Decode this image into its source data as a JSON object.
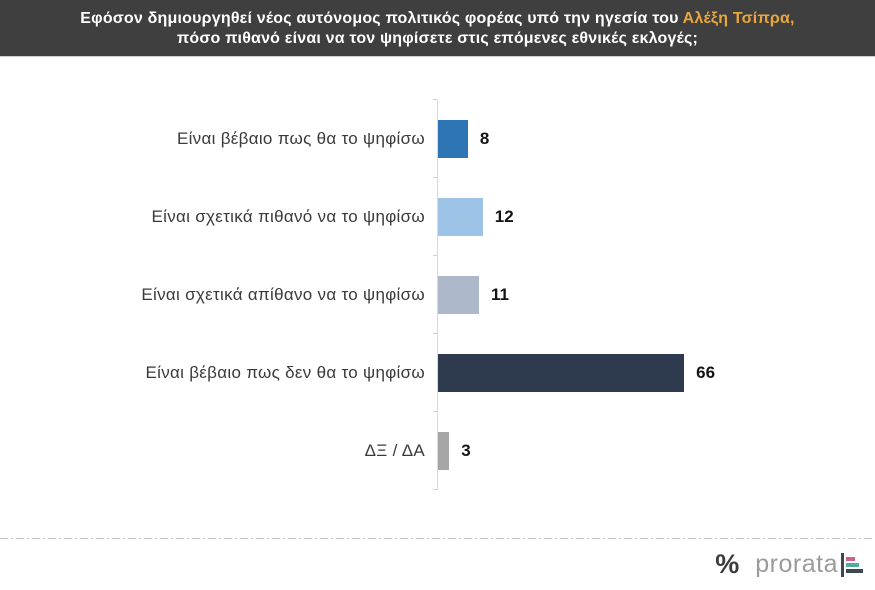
{
  "header": {
    "line1_prefix": "Εφόσον δημιουργηθεί νέος αυτόνομος πολιτικός φορέας υπό την ηγεσία του ",
    "line1_highlight": "Αλέξη Τσίπρα,",
    "line2": "πόσο πιθανό είναι να τον ψηφίσετε στις επόμενες εθνικές εκλογές;",
    "bg_color": "#3f3f3f",
    "text_color": "#ffffff",
    "highlight_color": "#e9a63f"
  },
  "chart_data": {
    "type": "bar",
    "orientation": "horizontal",
    "title": "Εφόσον δημιουργηθεί νέος αυτόνομος πολιτικός φορέας υπό την ηγεσία του Αλέξη Τσίπρα, πόσο πιθανό είναι να τον ψηφίσετε στις επόμενες εθνικές εκλογές;",
    "categories": [
      "Είναι βέβαιο πως θα το ψηφίσω",
      "Είναι σχετικά πιθανό να το ψηφίσω",
      "Είναι σχετικά απίθανο να το ψηφίσω",
      "Είναι βέβαιο πως δεν θα το ψηφίσω",
      "ΔΞ / ΔΑ"
    ],
    "values": [
      8,
      12,
      11,
      66,
      3
    ],
    "value_labels": [
      "8",
      "12",
      "11",
      "66",
      "3"
    ],
    "bar_colors": [
      "#2e75b6",
      "#9dc3e6",
      "#adb9ca",
      "#2e3b4e",
      "#a6a6a6"
    ],
    "xlabel": "",
    "ylabel": "",
    "xlim": [
      0,
      100
    ],
    "grid": false,
    "legend": false,
    "value_label_position": "right-of-bar",
    "axis_color": "#d9d9d9"
  },
  "footer": {
    "percent_symbol": "%",
    "brand": "prorata",
    "icon_colors": {
      "vertical_bar": "#3e4854",
      "hbar_top": "#c7638f",
      "hbar_middle": "#52ab9b",
      "hbar_bottom": "#3e4854"
    }
  }
}
